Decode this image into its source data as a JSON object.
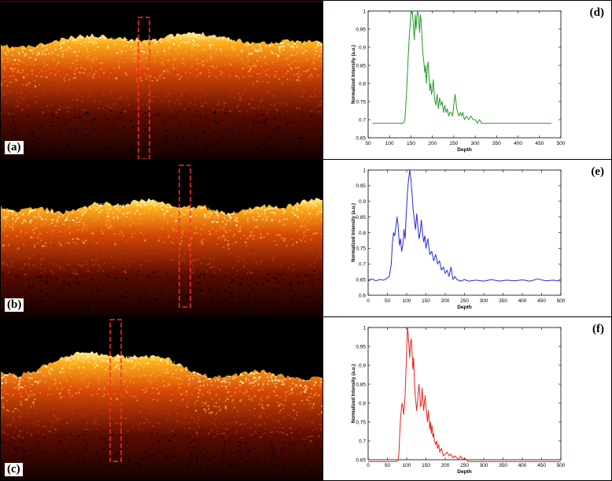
{
  "panels": {
    "a": "(a)",
    "b": "(b)",
    "c": "(c)",
    "d": "(d)",
    "e": "(e)",
    "f": "(f)"
  },
  "colors": {
    "d": "#2a9a2a",
    "e": "#2a2ad8",
    "f": "#e8231c",
    "roi": "#ff2a2a"
  },
  "chart_data": [
    {
      "id": "d",
      "type": "line",
      "xlabel": "Depth",
      "ylabel": "Normalized Intensity (a.u.)",
      "xlim": [
        50,
        500
      ],
      "ylim": [
        0.65,
        1
      ],
      "xticks": [
        "50",
        "100",
        "150",
        "200",
        "250",
        "300",
        "350",
        "400",
        "450",
        "500"
      ],
      "yticks": [
        "0.65",
        "0.7",
        "0.75",
        "0.8",
        "0.85",
        "0.9",
        "0.95",
        "1"
      ],
      "series": [
        {
          "color": "#2a9a2a",
          "x": [
            60,
            100,
            125,
            132,
            136,
            140,
            143,
            146,
            150,
            153,
            155,
            158,
            160,
            162,
            164,
            166,
            168,
            170,
            172,
            174,
            176,
            178,
            180,
            182,
            184,
            186,
            188,
            190,
            192,
            194,
            196,
            198,
            200,
            202,
            205,
            208,
            211,
            214,
            217,
            220,
            223,
            226,
            229,
            232,
            235,
            238,
            241,
            244,
            247,
            250,
            253,
            255,
            257,
            259,
            262,
            265,
            268,
            271,
            275,
            280,
            285,
            290,
            295,
            300,
            305,
            310,
            315,
            320,
            330,
            340,
            350,
            360,
            380,
            400,
            420,
            440,
            460,
            478
          ],
          "y": [
            0.69,
            0.69,
            0.69,
            0.69,
            0.7,
            0.78,
            0.86,
            0.93,
            0.99,
            1.0,
            0.97,
            0.92,
            0.99,
            0.95,
            0.99,
            1.0,
            0.98,
            0.94,
            0.99,
            0.97,
            0.92,
            0.88,
            0.86,
            0.83,
            0.85,
            0.8,
            0.84,
            0.86,
            0.82,
            0.78,
            0.8,
            0.77,
            0.78,
            0.81,
            0.76,
            0.74,
            0.77,
            0.73,
            0.76,
            0.74,
            0.75,
            0.72,
            0.74,
            0.72,
            0.73,
            0.71,
            0.72,
            0.72,
            0.71,
            0.74,
            0.77,
            0.75,
            0.73,
            0.72,
            0.71,
            0.72,
            0.71,
            0.72,
            0.7,
            0.71,
            0.7,
            0.71,
            0.7,
            0.7,
            0.69,
            0.7,
            0.69,
            0.69,
            0.69,
            0.69,
            0.69,
            0.69,
            0.69,
            0.69,
            0.69,
            0.69,
            0.69,
            0.69
          ]
        }
      ]
    },
    {
      "id": "e",
      "type": "line",
      "xlabel": "Depth",
      "ylabel": "Normalized Intensity (a.u.)",
      "xlim": [
        0,
        500
      ],
      "ylim": [
        0.6,
        1
      ],
      "xticks": [
        "0",
        "50",
        "100",
        "150",
        "200",
        "250",
        "300",
        "350",
        "400",
        "450",
        "500"
      ],
      "yticks": [
        "0.6",
        "0.65",
        "0.7",
        "0.75",
        "0.8",
        "0.85",
        "0.9",
        "0.95",
        "1"
      ],
      "series": [
        {
          "color": "#2a2ad8",
          "x": [
            0,
            10,
            20,
            30,
            40,
            50,
            55,
            60,
            63,
            66,
            69,
            72,
            75,
            78,
            81,
            84,
            87,
            90,
            93,
            96,
            99,
            102,
            105,
            108,
            111,
            114,
            117,
            120,
            123,
            126,
            129,
            132,
            135,
            138,
            141,
            144,
            147,
            150,
            155,
            160,
            165,
            170,
            175,
            180,
            185,
            190,
            195,
            200,
            205,
            210,
            215,
            220,
            225,
            230,
            240,
            250,
            260,
            280,
            300,
            320,
            340,
            360,
            380,
            400,
            420,
            440,
            460,
            480,
            500
          ],
          "y": [
            0.645,
            0.652,
            0.646,
            0.65,
            0.648,
            0.655,
            0.66,
            0.7,
            0.77,
            0.8,
            0.79,
            0.82,
            0.85,
            0.82,
            0.76,
            0.78,
            0.74,
            0.76,
            0.81,
            0.78,
            0.86,
            0.93,
            0.97,
            1.0,
            0.97,
            0.92,
            0.87,
            0.84,
            0.81,
            0.86,
            0.82,
            0.78,
            0.8,
            0.84,
            0.8,
            0.77,
            0.79,
            0.75,
            0.78,
            0.73,
            0.74,
            0.71,
            0.73,
            0.7,
            0.71,
            0.68,
            0.69,
            0.67,
            0.68,
            0.66,
            0.69,
            0.65,
            0.66,
            0.65,
            0.645,
            0.65,
            0.645,
            0.648,
            0.645,
            0.65,
            0.645,
            0.648,
            0.646,
            0.649,
            0.645,
            0.652,
            0.646,
            0.648,
            0.645
          ]
        }
      ]
    },
    {
      "id": "f",
      "type": "line",
      "xlabel": "Depth",
      "ylabel": "Normalized Intensity (a.u.)",
      "xlim": [
        0,
        500
      ],
      "ylim": [
        0.65,
        1
      ],
      "xticks": [
        "0",
        "50",
        "100",
        "150",
        "200",
        "250",
        "300",
        "350",
        "400",
        "450",
        "500"
      ],
      "yticks": [
        "0.65",
        "0.7",
        "0.75",
        "0.8",
        "0.85",
        "0.9",
        "0.95",
        "1"
      ],
      "series": [
        {
          "color": "#e8231c",
          "x": [
            0,
            20,
            40,
            60,
            70,
            75,
            78,
            80,
            82,
            84,
            86,
            88,
            90,
            92,
            94,
            96,
            98,
            100,
            102,
            104,
            106,
            108,
            110,
            112,
            114,
            116,
            118,
            120,
            122,
            124,
            126,
            128,
            130,
            132,
            134,
            136,
            138,
            140,
            142,
            144,
            146,
            148,
            150,
            152,
            154,
            156,
            158,
            160,
            162,
            164,
            166,
            168,
            170,
            172,
            175,
            178,
            180,
            183,
            186,
            190,
            195,
            200,
            205,
            210,
            215,
            220,
            225,
            230,
            235,
            240,
            245,
            250,
            260,
            280,
            300,
            350,
            400,
            450,
            500
          ],
          "y": [
            0.645,
            0.645,
            0.645,
            0.645,
            0.645,
            0.646,
            0.65,
            0.67,
            0.72,
            0.76,
            0.78,
            0.8,
            0.79,
            0.77,
            0.79,
            0.82,
            0.88,
            0.94,
            1.0,
            0.98,
            0.95,
            0.92,
            0.96,
            0.97,
            0.93,
            0.89,
            0.92,
            0.86,
            0.82,
            0.8,
            0.78,
            0.8,
            0.83,
            0.85,
            0.82,
            0.79,
            0.8,
            0.84,
            0.81,
            0.78,
            0.8,
            0.82,
            0.79,
            0.77,
            0.75,
            0.78,
            0.76,
            0.73,
            0.75,
            0.72,
            0.74,
            0.71,
            0.72,
            0.7,
            0.69,
            0.7,
            0.68,
            0.69,
            0.67,
            0.68,
            0.66,
            0.665,
            0.67,
            0.66,
            0.665,
            0.655,
            0.66,
            0.655,
            0.65,
            0.66,
            0.65,
            0.655,
            0.645,
            0.645,
            0.645,
            0.645,
            0.645,
            0.645,
            0.645
          ]
        }
      ]
    }
  ]
}
